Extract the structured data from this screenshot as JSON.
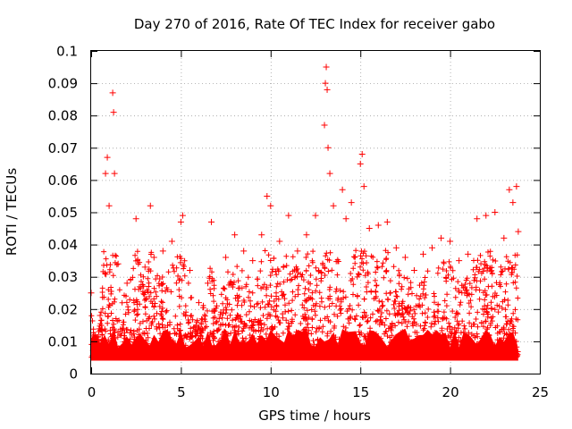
{
  "chart_data": {
    "type": "scatter",
    "title": "Day 270 of 2016, Rate Of TEC Index for receiver gabo",
    "xlabel": "GPS time / hours",
    "ylabel": "ROTI / TECUs",
    "xlim": [
      0,
      25
    ],
    "ylim": [
      0,
      0.1
    ],
    "x_ticks": [
      0,
      5,
      10,
      15,
      20,
      25
    ],
    "x_tick_labels": [
      "0",
      "5",
      "10",
      "15",
      "20",
      "25"
    ],
    "y_ticks": [
      0,
      0.01,
      0.02,
      0.03,
      0.04,
      0.05,
      0.06,
      0.07,
      0.08,
      0.09,
      0.1
    ],
    "y_tick_labels": [
      "0",
      "0.01",
      "0.02",
      "0.03",
      "0.04",
      "0.05",
      "0.06",
      "0.07",
      "0.08",
      "0.09",
      "0.1"
    ],
    "grid": true,
    "marker": "+",
    "marker_color": "#ff0000",
    "series": [
      {
        "name": "ROTI",
        "x": [
          0.0,
          0.2,
          0.5,
          0.8,
          0.9,
          1.0,
          1.2,
          1.25,
          1.3,
          1.5,
          2.0,
          2.5,
          3.0,
          3.3,
          3.5,
          4.0,
          4.5,
          5.0,
          5.1,
          5.5,
          6.0,
          6.5,
          6.7,
          7.0,
          7.5,
          8.0,
          8.5,
          9.0,
          9.5,
          9.8,
          10.0,
          10.5,
          11.0,
          11.5,
          12.0,
          12.5,
          13.0,
          13.05,
          13.1,
          13.15,
          13.2,
          13.3,
          13.5,
          14.0,
          14.2,
          14.5,
          15.0,
          15.1,
          15.2,
          15.5,
          16.0,
          16.5,
          17.0,
          17.5,
          18.0,
          18.5,
          19.0,
          19.5,
          20.0,
          20.5,
          21.0,
          21.5,
          22.0,
          22.5,
          23.0,
          23.3,
          23.5,
          23.7,
          23.8
        ],
        "y": [
          0.025,
          0.012,
          0.018,
          0.062,
          0.067,
          0.052,
          0.087,
          0.081,
          0.062,
          0.034,
          0.028,
          0.048,
          0.033,
          0.052,
          0.036,
          0.038,
          0.041,
          0.047,
          0.049,
          0.032,
          0.022,
          0.028,
          0.047,
          0.021,
          0.036,
          0.043,
          0.038,
          0.035,
          0.043,
          0.055,
          0.052,
          0.041,
          0.049,
          0.038,
          0.043,
          0.049,
          0.077,
          0.09,
          0.095,
          0.088,
          0.07,
          0.062,
          0.052,
          0.057,
          0.048,
          0.053,
          0.065,
          0.068,
          0.058,
          0.045,
          0.046,
          0.047,
          0.039,
          0.036,
          0.032,
          0.037,
          0.039,
          0.042,
          0.041,
          0.035,
          0.037,
          0.048,
          0.049,
          0.05,
          0.042,
          0.057,
          0.053,
          0.058,
          0.044
        ]
      }
    ]
  }
}
